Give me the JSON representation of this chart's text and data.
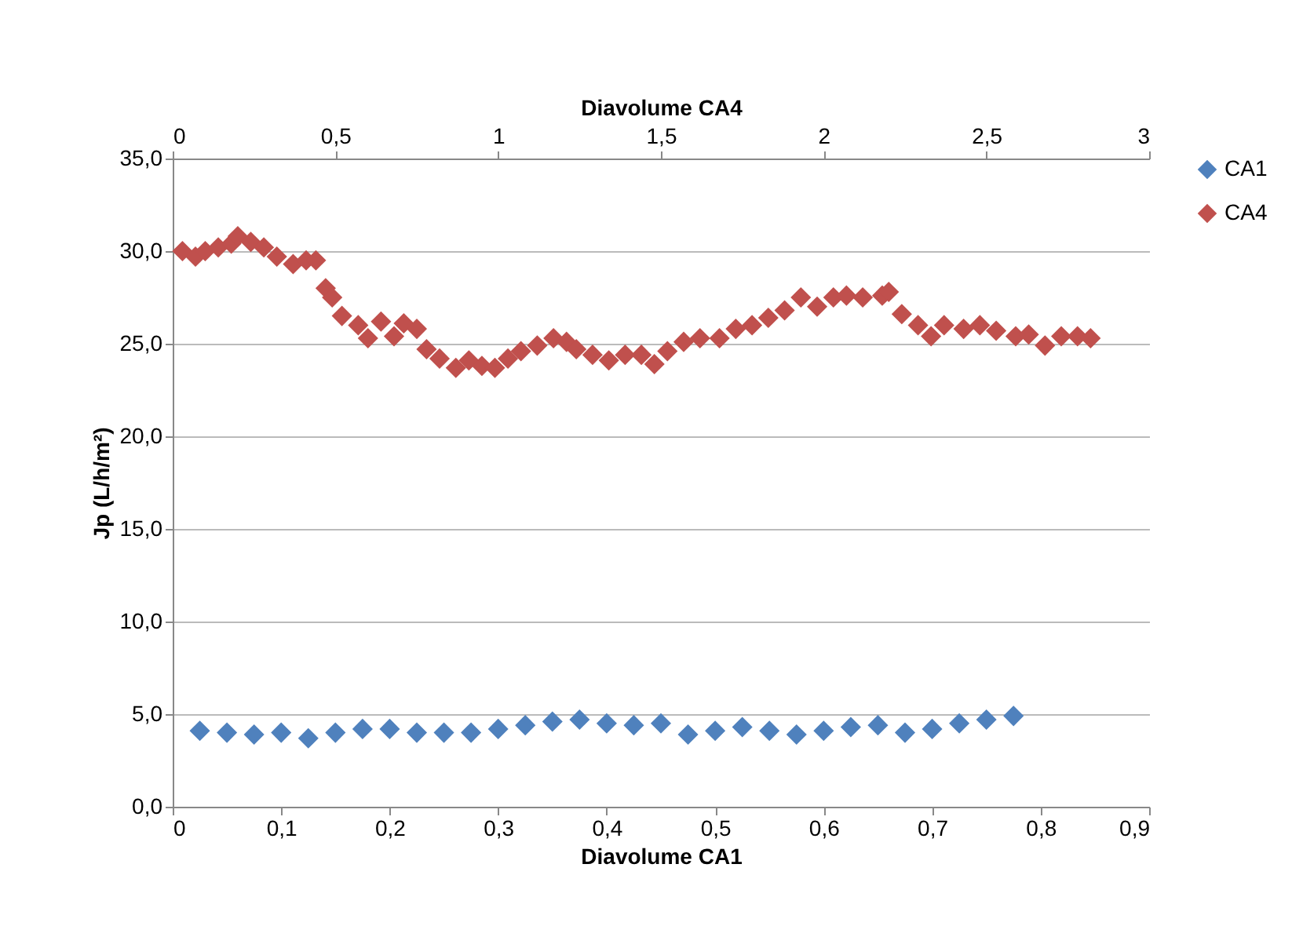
{
  "chart_data": {
    "type": "scatter",
    "xlabel": "Diavolume CA1",
    "x2label": "Diavolume CA4",
    "ylabel": "Jp (L/h/m²)",
    "xlim": [
      0,
      0.9
    ],
    "xticks": [
      0,
      {
        "value": 0.1,
        "label": "0,1"
      },
      {
        "value": 0.2,
        "label": "0,2"
      },
      {
        "value": 0.3,
        "label": "0,3"
      },
      {
        "value": 0.4,
        "label": "0,4"
      },
      {
        "value": 0.5,
        "label": "0,5"
      },
      {
        "value": 0.6,
        "label": "0,6"
      },
      {
        "value": 0.7,
        "label": "0,7"
      },
      {
        "value": 0.8,
        "label": "0,8"
      },
      {
        "value": 0.9,
        "label": "0,9"
      }
    ],
    "x2lim": [
      0,
      3
    ],
    "x2ticks": [
      0,
      {
        "value": 0.5,
        "label": "0,5"
      },
      1,
      {
        "value": 1.5,
        "label": "1,5"
      },
      2,
      {
        "value": 2.5,
        "label": "2,5"
      },
      3
    ],
    "ylim": [
      0,
      35
    ],
    "yticks": [
      {
        "value": 0,
        "label": "0,0"
      },
      {
        "value": 5,
        "label": "5,0"
      },
      {
        "value": 10,
        "label": "10,0"
      },
      {
        "value": 15,
        "label": "15,0"
      },
      {
        "value": 20,
        "label": "20,0"
      },
      {
        "value": 25,
        "label": "25,0"
      },
      {
        "value": 30,
        "label": "30,0"
      },
      {
        "value": 35,
        "label": "35,0"
      }
    ],
    "grid": "y",
    "legend": "right",
    "marker": "diamond",
    "series": [
      {
        "name": "CA1",
        "color": "#4f81bd",
        "x": [
          0.025,
          0.05,
          0.075,
          0.1,
          0.125,
          0.15,
          0.175,
          0.2,
          0.225,
          0.25,
          0.275,
          0.3,
          0.325,
          0.35,
          0.375,
          0.4,
          0.425,
          0.45,
          0.475,
          0.5,
          0.525,
          0.55,
          0.575,
          0.6,
          0.625,
          0.65,
          0.675,
          0.7,
          0.725,
          0.75,
          0.775
        ],
        "values": [
          4.1,
          4.0,
          3.9,
          4.0,
          3.7,
          4.0,
          4.2,
          4.2,
          4.0,
          4.0,
          4.0,
          4.2,
          4.4,
          4.6,
          4.7,
          4.5,
          4.4,
          4.5,
          3.9,
          4.1,
          4.3,
          4.1,
          3.9,
          4.1,
          4.3,
          4.4,
          4.0,
          4.2,
          4.5,
          4.7,
          4.9
        ]
      },
      {
        "name": "CA4",
        "color": "#c0504d",
        "axis": "x2",
        "x": [
          0.03,
          0.07,
          0.1,
          0.14,
          0.18,
          0.2,
          0.24,
          0.28,
          0.32,
          0.37,
          0.41,
          0.44,
          0.47,
          0.49,
          0.52,
          0.57,
          0.6,
          0.64,
          0.68,
          0.71,
          0.75,
          0.78,
          0.82,
          0.87,
          0.91,
          0.95,
          0.99,
          1.03,
          1.07,
          1.12,
          1.17,
          1.21,
          1.24,
          1.29,
          1.34,
          1.39,
          1.44,
          1.48,
          1.52,
          1.57,
          1.62,
          1.68,
          1.73,
          1.78,
          1.83,
          1.88,
          1.93,
          1.98,
          2.03,
          2.07,
          2.12,
          2.18,
          2.2,
          2.24,
          2.29,
          2.33,
          2.37,
          2.43,
          2.48,
          2.53,
          2.59,
          2.63,
          2.68,
          2.73,
          2.78,
          2.82
        ],
        "values": [
          30.0,
          29.7,
          30.0,
          30.2,
          30.4,
          30.8,
          30.5,
          30.2,
          29.7,
          29.3,
          29.5,
          29.5,
          28.0,
          27.5,
          26.5,
          26.0,
          25.3,
          26.2,
          25.4,
          26.1,
          25.8,
          24.7,
          24.2,
          23.7,
          24.1,
          23.8,
          23.7,
          24.2,
          24.6,
          24.9,
          25.3,
          25.1,
          24.7,
          24.4,
          24.1,
          24.4,
          24.4,
          23.9,
          24.6,
          25.1,
          25.3,
          25.3,
          25.8,
          26.0,
          26.4,
          26.8,
          27.5,
          27.0,
          27.5,
          27.6,
          27.5,
          27.6,
          27.8,
          26.6,
          26.0,
          25.4,
          26.0,
          25.8,
          26.0,
          25.7,
          25.4,
          25.5,
          24.9,
          25.4,
          25.4,
          25.3
        ]
      }
    ]
  }
}
